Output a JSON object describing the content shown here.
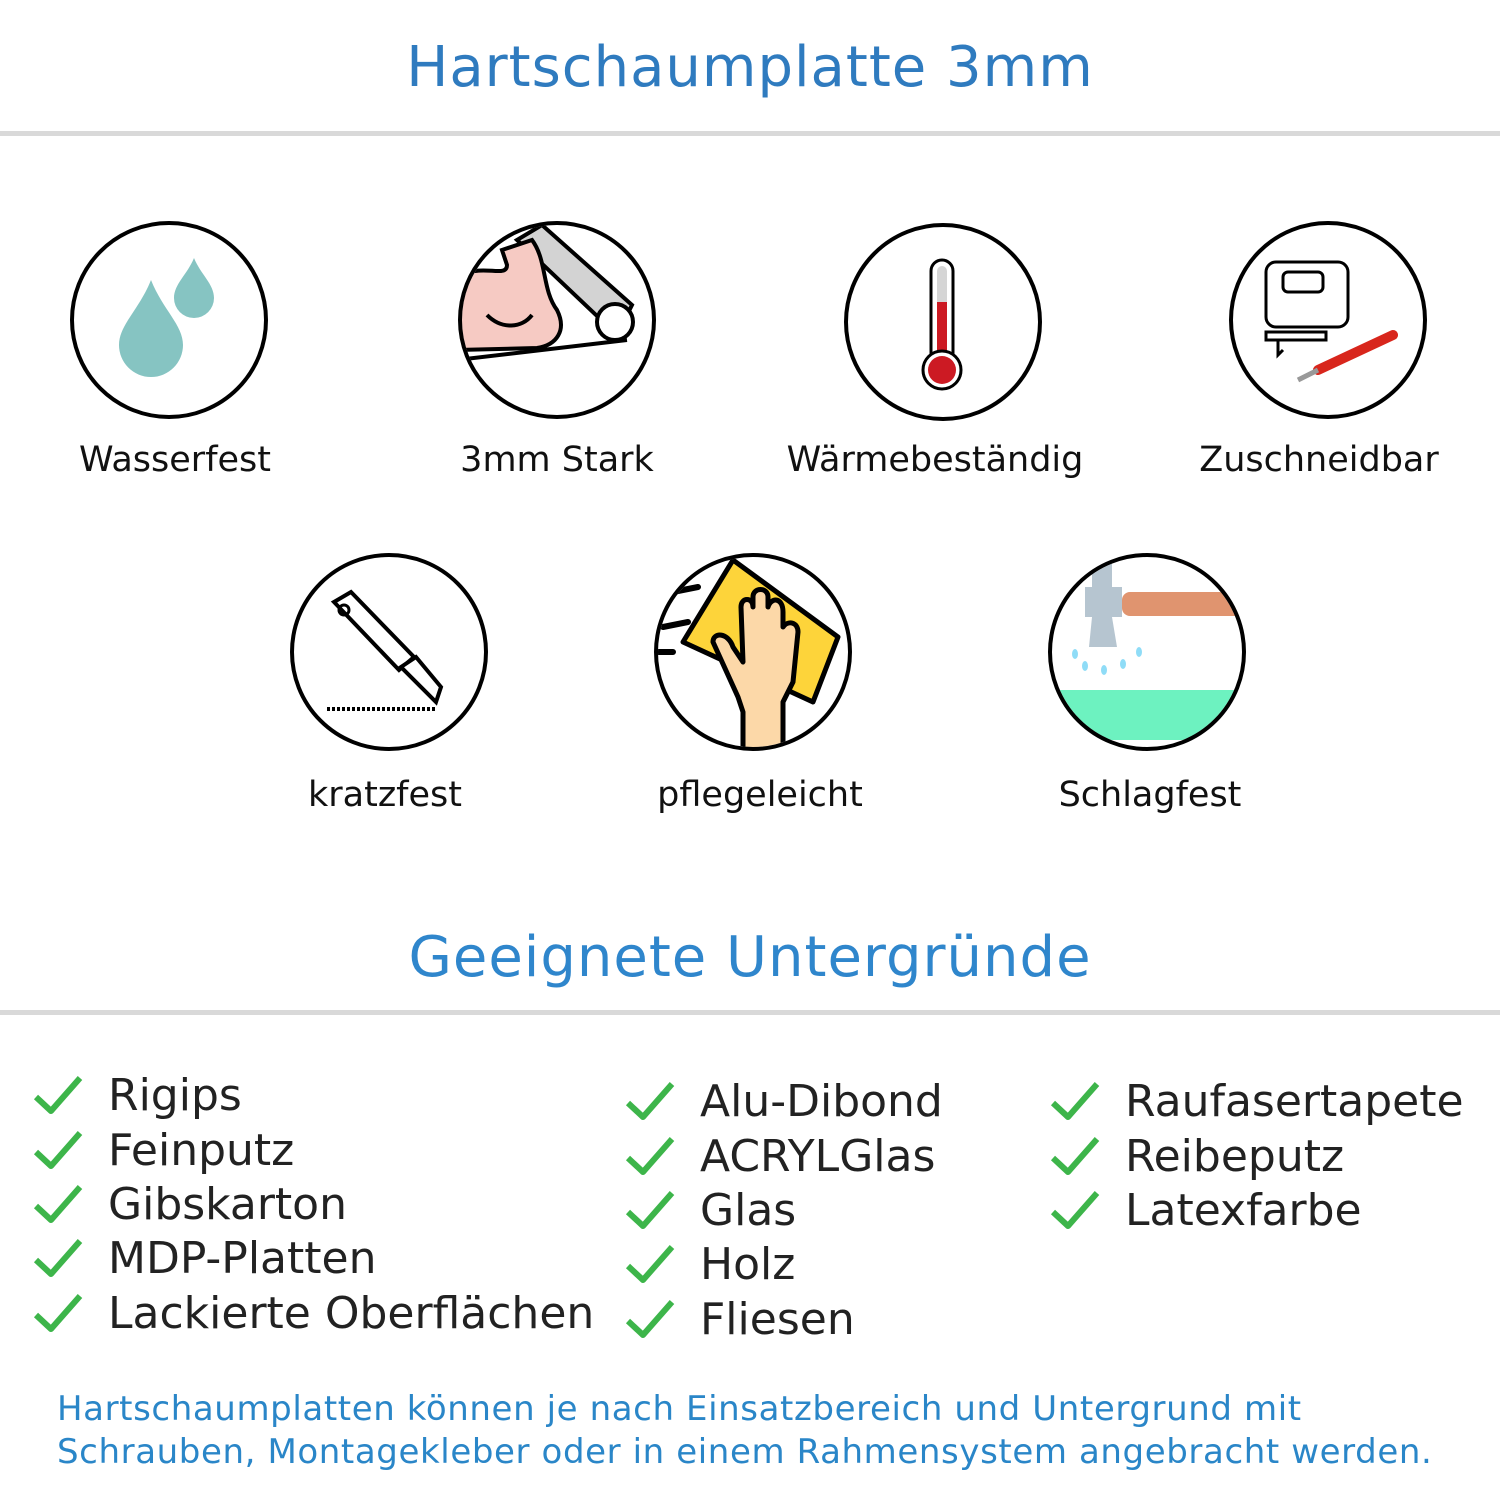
{
  "header": {
    "title": "Hartschaumplatte 3mm"
  },
  "features": [
    {
      "label": "Wasserfest",
      "icon": "water-drops-icon"
    },
    {
      "label": "3mm Stark",
      "icon": "strong-arm-icon"
    },
    {
      "label": "Wärmebeständig",
      "icon": "thermometer-icon"
    },
    {
      "label": "Zuschneidbar",
      "icon": "jigsaw-cutter-icon"
    },
    {
      "label": "kratzfest",
      "icon": "utility-knife-icon"
    },
    {
      "label": "pflegeleicht",
      "icon": "hand-cleaning-icon"
    },
    {
      "label": "Schlagfest",
      "icon": "hammer-icon"
    }
  ],
  "surfaces": {
    "title": "Geeignete Untergründe",
    "columns": [
      [
        "Rigips",
        "Feinputz",
        "Gibskarton",
        "MDP-Platten",
        "Lackierte Oberflächen"
      ],
      [
        "Alu-Dibond",
        "ACRYLGlas",
        "Glas",
        "Holz",
        "Fliesen"
      ],
      [
        "Raufasertapete",
        "Reibeputz",
        "Latexfarbe"
      ]
    ]
  },
  "footer": {
    "line1": "Hartschaumplatten können je nach Einsatzbereich und Untergrund mit",
    "line2": "Schrauben, Montagekleber oder in einem Rahmensystem angebracht werden."
  },
  "colors": {
    "title": "#2f7bbf",
    "subtitle": "#2f86cc",
    "check": "#3db54a",
    "footer": "#2a86c8"
  }
}
